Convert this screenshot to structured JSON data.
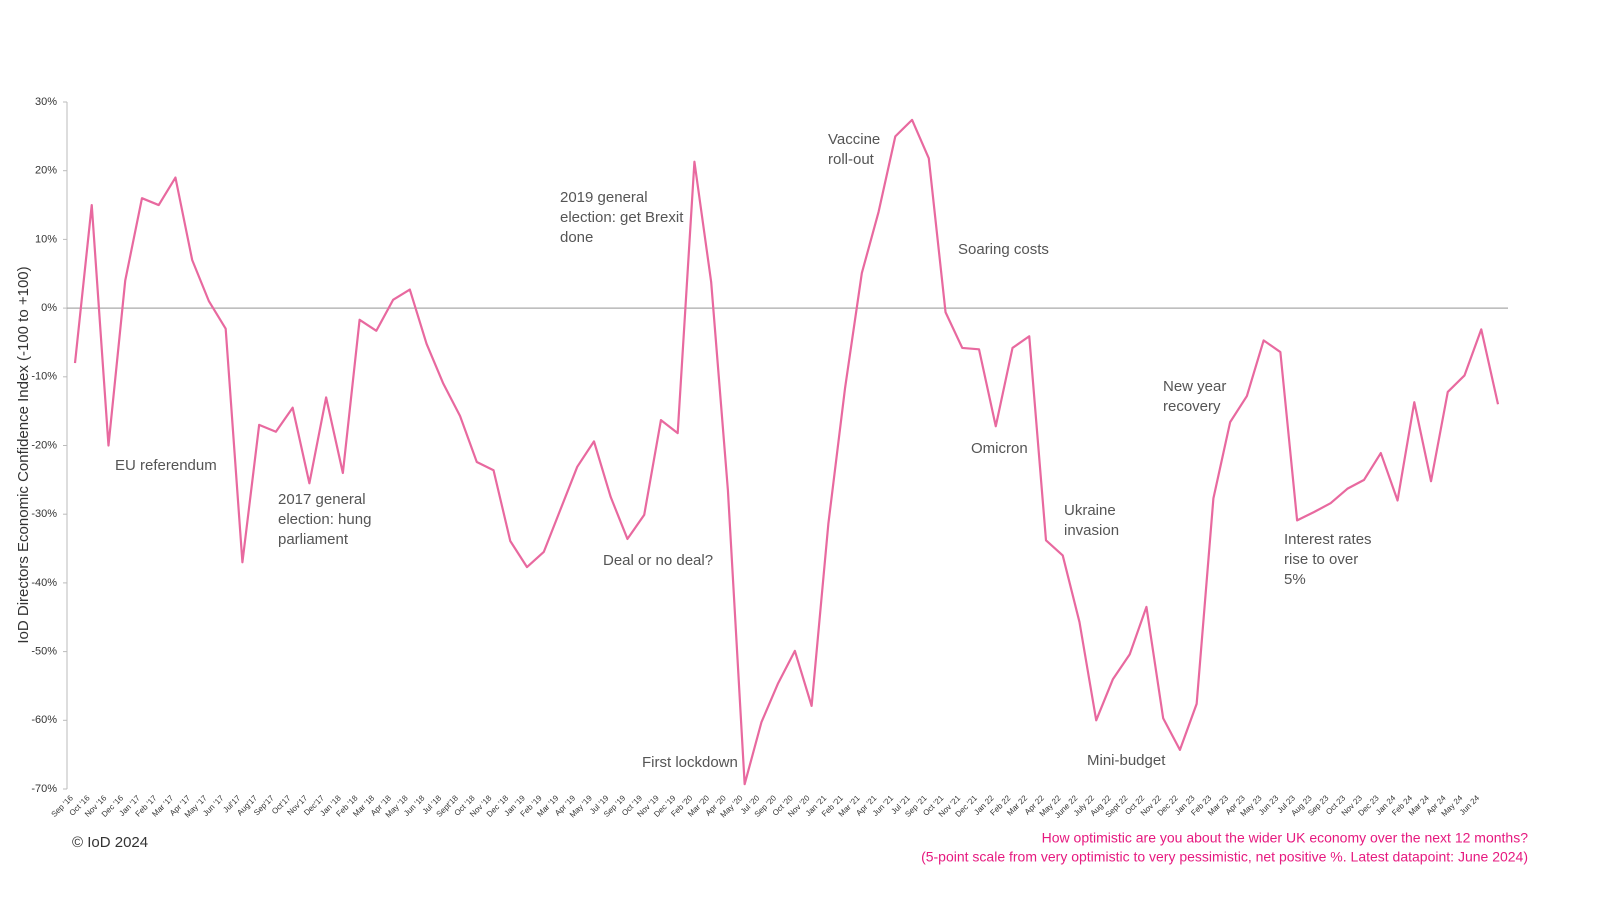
{
  "chart_data": {
    "type": "line",
    "y_label": "IoD Directors Economic Confidence Index (-100 to +100)",
    "footer": "© IoD 2024",
    "note": [
      "How optimistic are you about the wider UK economy over the next 12 months?",
      "(5-point scale from very optimistic to very pessimistic, net positive %. Latest datapoint: June 2024)"
    ],
    "annotations": [
      [
        "EU referendum"
      ],
      [
        "2017 general",
        "election: hung",
        "parliament"
      ],
      [
        "2019 general",
        "election: get Brexit",
        "done"
      ],
      [
        "Deal or no deal?"
      ],
      [
        "First lockdown"
      ],
      [
        "Vaccine",
        "roll-out"
      ],
      [
        "Soaring costs"
      ],
      [
        "Omicron"
      ],
      [
        "Ukraine",
        "invasion"
      ],
      [
        "Mini-budget"
      ],
      [
        "New year",
        "recovery"
      ],
      [
        "Interest rates",
        "rise to over",
        "5%"
      ]
    ],
    "categories": [
      "Sep '16",
      "Oct '16",
      "Nov '16",
      "Dec '16",
      "Jan '17",
      "Feb '17",
      "Mar '17",
      "Apr '17",
      "May '17",
      "Jun '17",
      "Jul'17",
      "Aug'17",
      "Sep'17",
      "Oct'17",
      "Nov'17",
      "Dec'17",
      "Jan '18",
      "Feb '18",
      "Mar '18",
      "Apr '18",
      "May '18",
      "Jun '18",
      "Jul '18",
      "Sept'18",
      "Oct '18",
      "Nov '18",
      "Dec '18",
      "Jan '19",
      "Feb '19",
      "Mar '19",
      "Apr '19",
      "May '19",
      "Jul '19",
      "Sep '19",
      "Oct '19",
      "Nov '19",
      "Dec '19",
      "Feb '20",
      "Mar '20",
      "Apr '20",
      "May '20",
      "Jul '20",
      "Sep '20",
      "Oct '20",
      "Nov '20",
      "Jan '21",
      "Feb '21",
      "Mar '21",
      "Apr '21",
      "Jun '21",
      "Jul '21",
      "Sep '21",
      "Oct '21",
      "Nov '21",
      "Dec '21",
      "Jan 22",
      "Feb 22",
      "Mar 22",
      "Apr 22",
      "May 22",
      "June 22",
      "July 22",
      "Aug 22",
      "Sept 22",
      "Oct 22",
      "Nov 22",
      "Dec 22",
      "Jan 23",
      "Feb 23",
      "Mar 23",
      "Apr 23",
      "May 23",
      "Jun 23",
      "Jul 23",
      "Aug 23",
      "Sep 23",
      "Oct 23",
      "Nov 23",
      "Dec 23",
      "Jan 24",
      "Feb 24",
      "Mar 24",
      "Apr 24",
      "May 24",
      "Jun 24",
      null
    ],
    "series": [
      {
        "name": "IoD Directors Economic Confidence Index",
        "color": "#e8699f",
        "values": [
          -8,
          15,
          -20,
          4,
          16,
          15,
          19,
          7,
          1,
          -3,
          -37,
          -17,
          -18,
          -14.5,
          -25.5,
          -13,
          -24,
          -1.7,
          -3.3,
          1.2,
          2.7,
          -5.2,
          -11,
          -15.7,
          -22.4,
          -23.6,
          -33.9,
          -37.7,
          -35.5,
          -29.3,
          -23.1,
          -19.4,
          -27.5,
          -33.6,
          -30.1,
          -16.3,
          -18.2,
          21.3,
          3.8,
          -26.5,
          -69.3,
          -60.3,
          -54.6,
          -49.9,
          -57.9,
          -31.4,
          -11.6,
          5.1,
          14,
          25,
          27.4,
          21.8,
          -0.6,
          -5.8,
          -6,
          -17.2,
          -5.8,
          -4.1,
          -33.8,
          -36,
          -45.7,
          -60,
          -54,
          -50.4,
          -43.5,
          -59.7,
          -64.3,
          -57.6,
          -27.7,
          -16.6,
          -12.8,
          -4.7,
          -6.4,
          -30.9,
          -29.7,
          -28.4,
          -26.3,
          -25,
          -21.1,
          -28,
          -13.7,
          -25.2,
          -12.2,
          -9.8,
          -3.1,
          -14
        ]
      }
    ],
    "ylim": [
      -70,
      30
    ],
    "yticks": [
      {
        "value": -70,
        "label": "-70%"
      },
      {
        "value": -60,
        "label": "-60%"
      },
      {
        "value": -50,
        "label": "-50%"
      },
      {
        "value": -40,
        "label": "-40%"
      },
      {
        "value": -30,
        "label": "-30%"
      },
      {
        "value": -20,
        "label": "-20%"
      },
      {
        "value": -10,
        "label": "-10%"
      },
      {
        "value": 0,
        "label": "0%"
      },
      {
        "value": 10,
        "label": "10%"
      },
      {
        "value": 20,
        "label": "20%"
      },
      {
        "value": 30,
        "label": "30%"
      }
    ],
    "zero_line": true
  }
}
